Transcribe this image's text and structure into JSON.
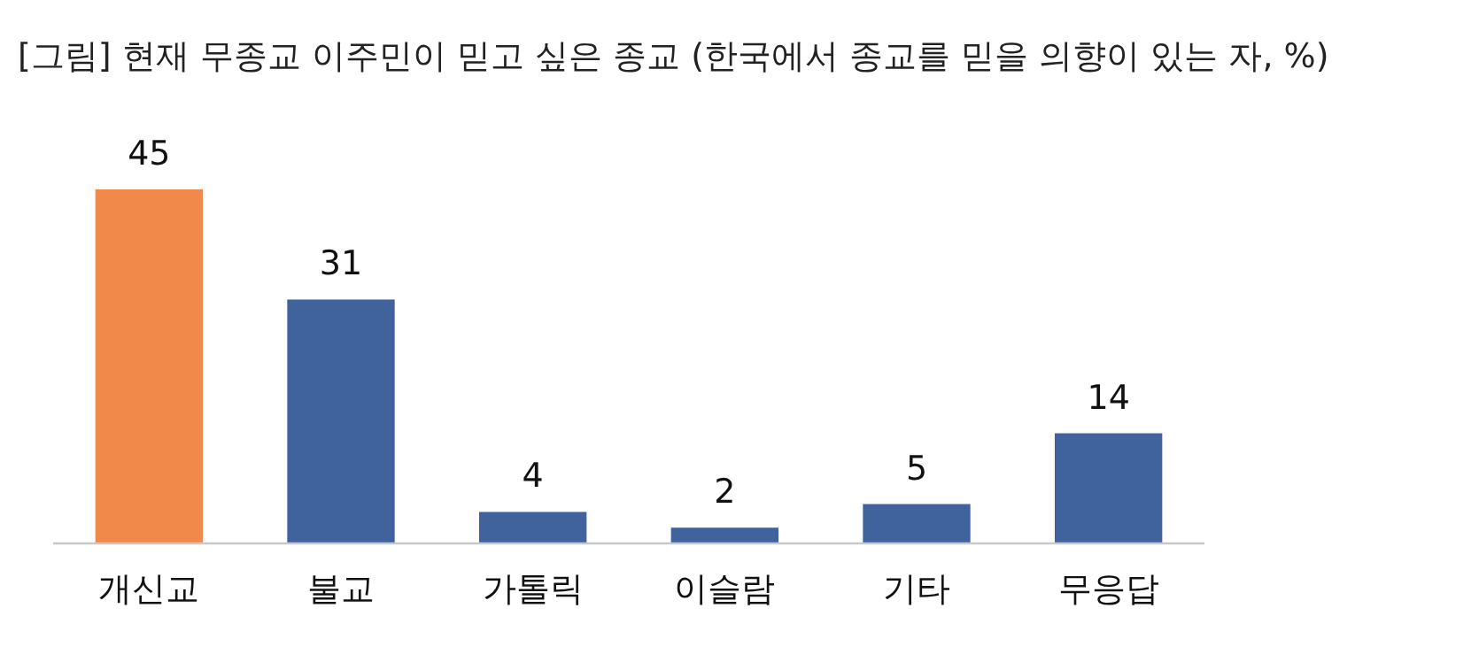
{
  "chart_data": {
    "type": "bar",
    "title": "[그림] 현재 무종교 이주민이 믿고 싶은 종교 (한국에서 종교를 믿을 의향이 있는 자, %)",
    "categories": [
      "개신교",
      "불교",
      "가톨릭",
      "이슬람",
      "기타",
      "무응답"
    ],
    "values": [
      45,
      31,
      4,
      2,
      5,
      14
    ],
    "colors": [
      "#f0894a",
      "#40629d",
      "#40629d",
      "#40629d",
      "#40629d",
      "#40629d"
    ],
    "data_labels": true
  }
}
